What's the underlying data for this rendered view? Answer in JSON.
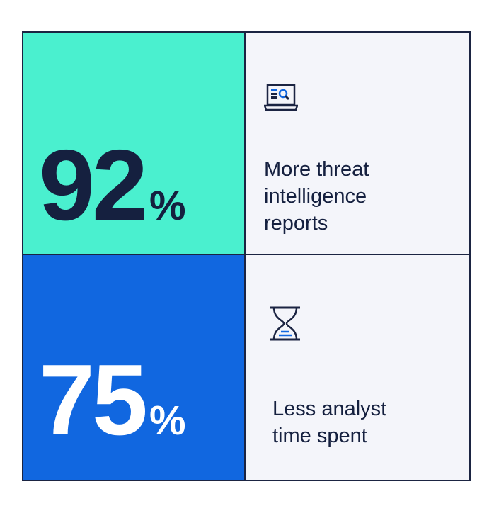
{
  "stats": [
    {
      "value": "92",
      "unit": "%",
      "label_lines": [
        "More threat",
        "intelligence",
        "reports"
      ]
    },
    {
      "value": "75",
      "unit": "%",
      "label_lines": [
        "Less analyst",
        "time spent"
      ]
    }
  ]
}
